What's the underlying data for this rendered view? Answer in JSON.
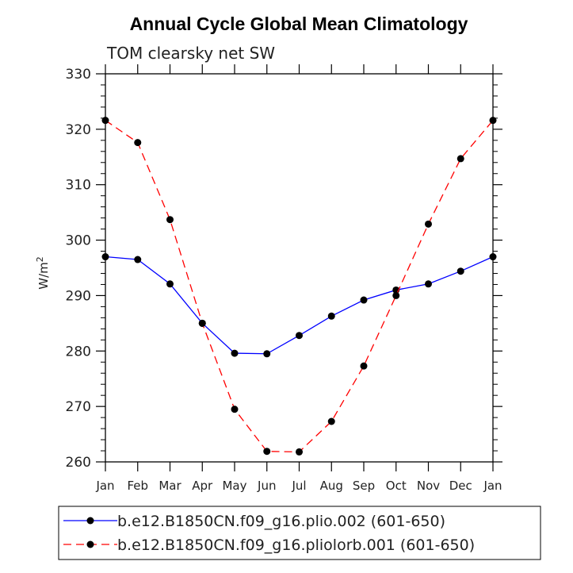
{
  "chart_data": {
    "type": "line",
    "title": "Annual Cycle Global Mean Climatology",
    "subtitle": "TOM clearsky net SW",
    "xlabel": "",
    "ylabel": "W/m",
    "ylabel_superscript": "2",
    "categories": [
      "Jan",
      "Feb",
      "Mar",
      "Apr",
      "May",
      "Jun",
      "Jul",
      "Aug",
      "Sep",
      "Oct",
      "Nov",
      "Dec",
      "Jan"
    ],
    "ylim": [
      260,
      330
    ],
    "yticks": [
      260,
      270,
      280,
      290,
      300,
      310,
      320,
      330
    ],
    "grid": false,
    "legend_position": "bottom",
    "series": [
      {
        "name": "b.e12.B1850CN.f09_g16.plio.002 (601-650)",
        "color": "#0000ff",
        "dash": "solid",
        "values": [
          297.0,
          296.5,
          292.1,
          285.0,
          279.6,
          279.5,
          282.8,
          286.3,
          289.2,
          291.0,
          292.1,
          294.4,
          297.0
        ]
      },
      {
        "name": "b.e12.B1850CN.f09_g16.pliolorb.001 (601-650)",
        "color": "#ff0000",
        "dash": "dashed",
        "values": [
          321.6,
          317.6,
          303.7,
          285.0,
          269.5,
          261.9,
          261.8,
          267.3,
          277.3,
          290.0,
          302.9,
          314.7,
          321.6
        ]
      }
    ]
  }
}
